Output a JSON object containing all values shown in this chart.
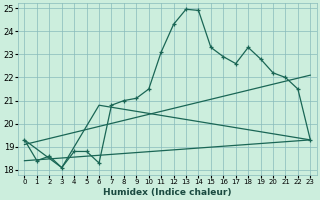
{
  "xlabel": "Humidex (Indice chaleur)",
  "bg_color": "#cceedd",
  "grid_color": "#88bbbb",
  "line_color": "#1a6655",
  "xlim": [
    -0.5,
    23.5
  ],
  "ylim": [
    17.8,
    25.2
  ],
  "xticks": [
    0,
    1,
    2,
    3,
    4,
    5,
    6,
    7,
    8,
    9,
    10,
    11,
    12,
    13,
    14,
    15,
    16,
    17,
    18,
    19,
    20,
    21,
    22,
    23
  ],
  "yticks": [
    18,
    19,
    20,
    21,
    22,
    23,
    24,
    25
  ],
  "line1_x": [
    0,
    1,
    2,
    3,
    4,
    5,
    6,
    7,
    8,
    9,
    10,
    11,
    12,
    13,
    14,
    15,
    16,
    17,
    18,
    19,
    20,
    21,
    22,
    23
  ],
  "line1_y": [
    19.3,
    18.4,
    18.6,
    18.1,
    18.8,
    18.8,
    18.3,
    20.8,
    21.0,
    21.1,
    21.5,
    23.1,
    24.3,
    24.95,
    24.9,
    23.3,
    22.9,
    22.6,
    23.3,
    22.8,
    22.2,
    22.0,
    21.5,
    19.3
  ],
  "line2_x": [
    0,
    3,
    6,
    23
  ],
  "line2_y": [
    19.3,
    18.1,
    20.8,
    19.3
  ],
  "line3_x": [
    0,
    23
  ],
  "line3_y": [
    18.4,
    19.3
  ],
  "line4_x": [
    0,
    23
  ],
  "line4_y": [
    19.1,
    22.1
  ]
}
